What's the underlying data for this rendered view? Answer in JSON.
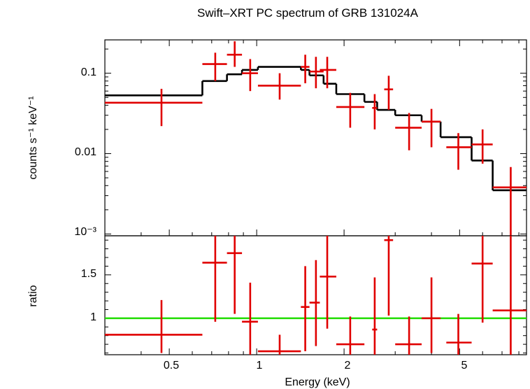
{
  "chart_data": [
    {
      "type": "line",
      "panel": "spectrum",
      "title": "Swift–XRT PC spectrum of GRB 131024A",
      "ylabel": "counts s⁻¹ keV⁻¹",
      "xlabel": "",
      "xscale": "log",
      "yscale": "log",
      "xlim": [
        0.3,
        8.5
      ],
      "ylim": [
        0.00095,
        0.26
      ],
      "y_ticklabels": [
        "0.1",
        "0.01",
        "10⁻³"
      ],
      "x_ticklabels": [],
      "data_points": [
        {
          "x": 0.47,
          "xlo": 0.3,
          "xhi": 0.65,
          "y": 0.043,
          "ylo": 0.022,
          "yhi": 0.064
        },
        {
          "x": 0.72,
          "xlo": 0.65,
          "xhi": 0.79,
          "y": 0.13,
          "ylo": 0.08,
          "yhi": 0.18
        },
        {
          "x": 0.84,
          "xlo": 0.79,
          "xhi": 0.89,
          "y": 0.17,
          "ylo": 0.12,
          "yhi": 0.25
        },
        {
          "x": 0.95,
          "xlo": 0.89,
          "xhi": 1.01,
          "y": 0.1,
          "ylo": 0.06,
          "yhi": 0.15
        },
        {
          "x": 1.2,
          "xlo": 1.01,
          "xhi": 1.42,
          "y": 0.07,
          "ylo": 0.047,
          "yhi": 0.1
        },
        {
          "x": 1.47,
          "xlo": 1.42,
          "xhi": 1.52,
          "y": 0.12,
          "ylo": 0.075,
          "yhi": 0.17
        },
        {
          "x": 1.6,
          "xlo": 1.52,
          "xhi": 1.7,
          "y": 0.105,
          "ylo": 0.065,
          "yhi": 0.16
        },
        {
          "x": 1.75,
          "xlo": 1.65,
          "xhi": 1.88,
          "y": 0.11,
          "ylo": 0.065,
          "yhi": 0.16
        },
        {
          "x": 2.1,
          "xlo": 1.88,
          "xhi": 2.35,
          "y": 0.038,
          "ylo": 0.021,
          "yhi": 0.057
        },
        {
          "x": 2.55,
          "xlo": 2.5,
          "xhi": 2.6,
          "y": 0.037,
          "ylo": 0.02,
          "yhi": 0.055
        },
        {
          "x": 2.85,
          "xlo": 2.75,
          "xhi": 2.95,
          "y": 0.063,
          "ylo": 0.035,
          "yhi": 0.093
        },
        {
          "x": 3.35,
          "xlo": 3.0,
          "xhi": 3.7,
          "y": 0.021,
          "ylo": 0.011,
          "yhi": 0.032
        },
        {
          "x": 4.0,
          "xlo": 3.7,
          "xhi": 4.3,
          "y": 0.025,
          "ylo": 0.012,
          "yhi": 0.036
        },
        {
          "x": 4.95,
          "xlo": 4.5,
          "xhi": 5.5,
          "y": 0.012,
          "ylo": 0.0063,
          "yhi": 0.018
        },
        {
          "x": 6.0,
          "xlo": 5.5,
          "xhi": 6.5,
          "y": 0.013,
          "ylo": 0.0075,
          "yhi": 0.02
        },
        {
          "x": 7.5,
          "xlo": 6.5,
          "xhi": 8.5,
          "y": 0.0038,
          "ylo": 0.00095,
          "yhi": 0.0068
        }
      ],
      "model_steps": [
        {
          "xlo": 0.3,
          "xhi": 0.65,
          "y": 0.053
        },
        {
          "xlo": 0.65,
          "xhi": 0.79,
          "y": 0.08
        },
        {
          "xlo": 0.79,
          "xhi": 0.89,
          "y": 0.097
        },
        {
          "xlo": 0.89,
          "xhi": 1.01,
          "y": 0.11
        },
        {
          "xlo": 1.01,
          "xhi": 1.42,
          "y": 0.12
        },
        {
          "xlo": 1.42,
          "xhi": 1.52,
          "y": 0.11
        },
        {
          "xlo": 1.52,
          "xhi": 1.7,
          "y": 0.094
        },
        {
          "xlo": 1.7,
          "xhi": 1.88,
          "y": 0.074
        },
        {
          "xlo": 1.88,
          "xhi": 2.35,
          "y": 0.055
        },
        {
          "xlo": 2.35,
          "xhi": 2.6,
          "y": 0.044
        },
        {
          "xlo": 2.6,
          "xhi": 3.0,
          "y": 0.035
        },
        {
          "xlo": 3.0,
          "xhi": 3.7,
          "y": 0.03
        },
        {
          "xlo": 3.7,
          "xhi": 4.3,
          "y": 0.025
        },
        {
          "xlo": 4.3,
          "xhi": 5.5,
          "y": 0.016
        },
        {
          "xlo": 5.5,
          "xhi": 6.5,
          "y": 0.0082
        },
        {
          "xlo": 6.5,
          "xhi": 8.5,
          "y": 0.0035
        }
      ]
    },
    {
      "type": "scatter",
      "panel": "ratio",
      "title": "",
      "ylabel": "ratio",
      "xlabel": "Energy (keV)",
      "xscale": "log",
      "yscale": "linear",
      "xlim": [
        0.3,
        8.5
      ],
      "ylim": [
        0.58,
        1.95
      ],
      "y_ticklabels": [
        "1.5",
        "1"
      ],
      "x_ticklabels": [
        "0.5",
        "1",
        "2",
        "5"
      ],
      "reference_line": 1,
      "data_points": [
        {
          "x": 0.47,
          "xlo": 0.3,
          "xhi": 0.65,
          "y": 0.81,
          "ylo": 0.6,
          "yhi": 1.21
        },
        {
          "x": 0.72,
          "xlo": 0.65,
          "xhi": 0.79,
          "y": 1.64,
          "ylo": 0.96,
          "yhi": 1.95
        },
        {
          "x": 0.84,
          "xlo": 0.79,
          "xhi": 0.89,
          "y": 1.75,
          "ylo": 1.05,
          "yhi": 1.95
        },
        {
          "x": 0.95,
          "xlo": 0.89,
          "xhi": 1.01,
          "y": 0.96,
          "ylo": 0.58,
          "yhi": 1.41
        },
        {
          "x": 1.2,
          "xlo": 1.01,
          "xhi": 1.42,
          "y": 0.62,
          "ylo": 0.58,
          "yhi": 0.81
        },
        {
          "x": 1.47,
          "xlo": 1.42,
          "xhi": 1.52,
          "y": 1.13,
          "ylo": 0.62,
          "yhi": 1.6
        },
        {
          "x": 1.6,
          "xlo": 1.52,
          "xhi": 1.65,
          "y": 1.18,
          "ylo": 0.68,
          "yhi": 1.67
        },
        {
          "x": 1.75,
          "xlo": 1.65,
          "xhi": 1.88,
          "y": 1.48,
          "ylo": 0.88,
          "yhi": 1.95
        },
        {
          "x": 2.1,
          "xlo": 1.88,
          "xhi": 2.35,
          "y": 0.7,
          "ylo": 0.58,
          "yhi": 1.02
        },
        {
          "x": 2.55,
          "xlo": 2.5,
          "xhi": 2.6,
          "y": 0.87,
          "ylo": 0.58,
          "yhi": 1.47
        },
        {
          "x": 2.85,
          "xlo": 2.75,
          "xhi": 2.95,
          "y": 1.9,
          "ylo": 1.03,
          "yhi": 1.95
        },
        {
          "x": 3.35,
          "xlo": 3.0,
          "xhi": 3.7,
          "y": 0.7,
          "ylo": 0.58,
          "yhi": 1.02
        },
        {
          "x": 4.0,
          "xlo": 3.7,
          "xhi": 4.3,
          "y": 1.0,
          "ylo": 0.6,
          "yhi": 1.47
        },
        {
          "x": 4.95,
          "xlo": 4.5,
          "xhi": 5.5,
          "y": 0.72,
          "ylo": 0.58,
          "yhi": 1.05
        },
        {
          "x": 6.0,
          "xlo": 5.5,
          "xhi": 6.5,
          "y": 1.63,
          "ylo": 0.95,
          "yhi": 1.95
        },
        {
          "x": 7.5,
          "xlo": 6.5,
          "xhi": 8.5,
          "y": 1.09,
          "ylo": 0.58,
          "yhi": 1.95
        }
      ]
    }
  ],
  "colors": {
    "data": "#e00000",
    "model": "#000000",
    "reference_line": "#22dd00",
    "axes": "#000000"
  }
}
